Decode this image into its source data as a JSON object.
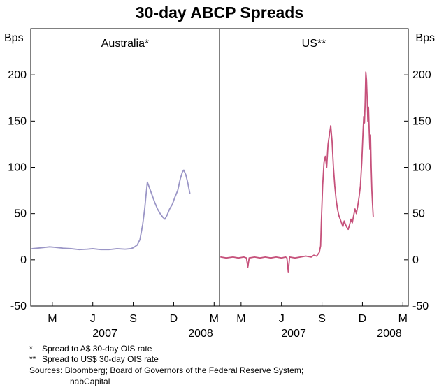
{
  "title": "30-day ABCP Spreads",
  "footnotes": {
    "note1_marker": "*",
    "note1_text": "Spread to A$ 30-day OIS rate",
    "note2_marker": "**",
    "note2_text": "Spread to US$ 30-day OIS rate",
    "sources_line1": "Sources: Bloomberg; Board of Governors of the Federal Reserve System;",
    "sources_line2": "nabCapital"
  },
  "chart_data": {
    "type": "line",
    "title": "30-day ABCP Spreads",
    "ylabel": "Bps",
    "ylim": [
      -50,
      250
    ],
    "yticks": [
      -50,
      0,
      50,
      100,
      150,
      200
    ],
    "grid": false,
    "x_domain": [
      0,
      14
    ],
    "xticks": [
      {
        "t": 1.6,
        "label": "M"
      },
      {
        "t": 4.6,
        "label": "J"
      },
      {
        "t": 7.6,
        "label": "S"
      },
      {
        "t": 10.6,
        "label": "D"
      },
      {
        "t": 13.6,
        "label": "M"
      }
    ],
    "year_labels": [
      {
        "t": 5.5,
        "label": "2007"
      },
      {
        "t": 12.6,
        "label": "2008"
      }
    ],
    "panels": [
      {
        "label": "Australia*",
        "series": [
          {
            "name": "Australia",
            "color": "#9a95c6",
            "points": [
              [
                0.1,
                12
              ],
              [
                0.8,
                13
              ],
              [
                1.4,
                14
              ],
              [
                1.8,
                13.5
              ],
              [
                2.4,
                12.5
              ],
              [
                3.0,
                12
              ],
              [
                3.6,
                11
              ],
              [
                4.2,
                11.5
              ],
              [
                4.6,
                12
              ],
              [
                5.2,
                11
              ],
              [
                5.8,
                11
              ],
              [
                6.4,
                12
              ],
              [
                7.0,
                11.5
              ],
              [
                7.4,
                12
              ],
              [
                7.6,
                13
              ],
              [
                7.9,
                16
              ],
              [
                8.1,
                22
              ],
              [
                8.3,
                38
              ],
              [
                8.45,
                55
              ],
              [
                8.55,
                70
              ],
              [
                8.65,
                84
              ],
              [
                8.8,
                78
              ],
              [
                9.0,
                70
              ],
              [
                9.2,
                62
              ],
              [
                9.4,
                55
              ],
              [
                9.6,
                50
              ],
              [
                9.8,
                46
              ],
              [
                9.95,
                44
              ],
              [
                10.1,
                48
              ],
              [
                10.3,
                55
              ],
              [
                10.5,
                60
              ],
              [
                10.7,
                68
              ],
              [
                10.9,
                75
              ],
              [
                11.1,
                88
              ],
              [
                11.25,
                95
              ],
              [
                11.35,
                97
              ],
              [
                11.5,
                92
              ],
              [
                11.65,
                83
              ],
              [
                11.8,
                72
              ]
            ]
          }
        ]
      },
      {
        "label": "US**",
        "series": [
          {
            "name": "US",
            "color": "#c6517b",
            "points": [
              [
                0.1,
                3
              ],
              [
                0.5,
                2
              ],
              [
                1.0,
                3
              ],
              [
                1.4,
                2
              ],
              [
                1.8,
                3
              ],
              [
                2.0,
                2
              ],
              [
                2.1,
                -8
              ],
              [
                2.2,
                2
              ],
              [
                2.6,
                3
              ],
              [
                3.0,
                2
              ],
              [
                3.4,
                3
              ],
              [
                3.8,
                2
              ],
              [
                4.2,
                3
              ],
              [
                4.6,
                2
              ],
              [
                4.9,
                3
              ],
              [
                5.0,
                2
              ],
              [
                5.1,
                -13
              ],
              [
                5.2,
                3
              ],
              [
                5.6,
                2
              ],
              [
                6.0,
                3
              ],
              [
                6.4,
                4
              ],
              [
                6.8,
                3
              ],
              [
                7.0,
                5
              ],
              [
                7.2,
                4
              ],
              [
                7.4,
                8
              ],
              [
                7.5,
                15
              ],
              [
                7.55,
                40
              ],
              [
                7.65,
                80
              ],
              [
                7.75,
                105
              ],
              [
                7.85,
                112
              ],
              [
                7.95,
                100
              ],
              [
                8.05,
                125
              ],
              [
                8.15,
                135
              ],
              [
                8.25,
                145
              ],
              [
                8.35,
                128
              ],
              [
                8.45,
                100
              ],
              [
                8.55,
                80
              ],
              [
                8.65,
                65
              ],
              [
                8.75,
                55
              ],
              [
                8.85,
                48
              ],
              [
                8.95,
                44
              ],
              [
                9.05,
                40
              ],
              [
                9.15,
                36
              ],
              [
                9.25,
                42
              ],
              [
                9.35,
                38
              ],
              [
                9.45,
                35
              ],
              [
                9.55,
                33
              ],
              [
                9.65,
                38
              ],
              [
                9.75,
                44
              ],
              [
                9.85,
                40
              ],
              [
                9.95,
                48
              ],
              [
                10.05,
                55
              ],
              [
                10.15,
                50
              ],
              [
                10.25,
                58
              ],
              [
                10.35,
                68
              ],
              [
                10.45,
                80
              ],
              [
                10.55,
                105
              ],
              [
                10.65,
                140
              ],
              [
                10.7,
                155
              ],
              [
                10.75,
                148
              ],
              [
                10.8,
                170
              ],
              [
                10.85,
                203
              ],
              [
                10.9,
                195
              ],
              [
                10.95,
                175
              ],
              [
                11.0,
                150
              ],
              [
                11.05,
                165
              ],
              [
                11.1,
                140
              ],
              [
                11.15,
                120
              ],
              [
                11.2,
                135
              ],
              [
                11.25,
                100
              ],
              [
                11.3,
                75
              ],
              [
                11.35,
                60
              ],
              [
                11.4,
                47
              ]
            ]
          }
        ]
      }
    ]
  }
}
